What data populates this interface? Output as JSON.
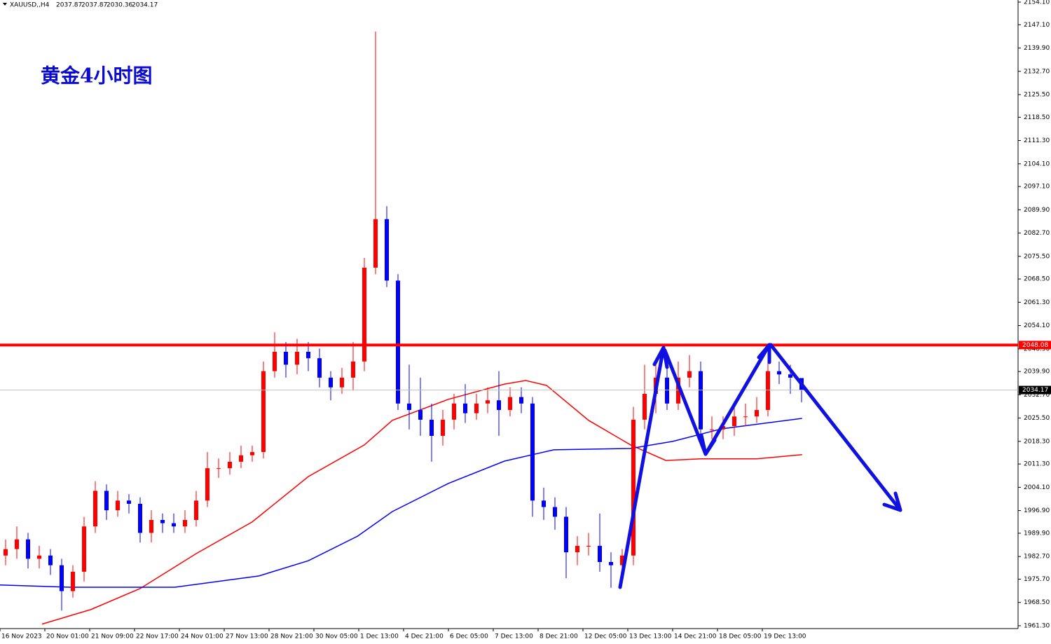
{
  "chart_data": {
    "type": "candlestick",
    "title": "黄金4小时图",
    "header": {
      "symbol": "XAUUSD,,H4",
      "ohlc": [
        2037.87,
        2037.87,
        2030.36,
        2034.17
      ]
    },
    "up_color": "#ff0000",
    "down_color": "#0000ff",
    "open": [
      1983,
      1985,
      1988,
      1982,
      1983,
      1980,
      1972,
      1978,
      1992,
      2003,
      1997,
      2000,
      1999,
      1990,
      1994,
      1993,
      1992,
      1994,
      2000,
      2010,
      2010,
      2012,
      2014,
      2015,
      2040,
      2046,
      2042,
      2046,
      2044,
      2038,
      2035,
      2038,
      2043,
      2072,
      2087,
      2068,
      2030,
      2028,
      2025,
      2020,
      2025,
      2030,
      2027,
      2030,
      2031,
      2028,
      2032,
      2030,
      2000,
      1998,
      1995,
      1984,
      1986,
      1986,
      1981,
      1980,
      1983,
      2025,
      2033,
      2038,
      2030,
      2038,
      2040,
      2022,
      2022,
      2023,
      2026,
      2026,
      2028,
      2040,
      2039,
      2037.87
    ],
    "high": [
      1988,
      1992,
      1990,
      1986,
      1985,
      1982,
      1980,
      1995,
      2006,
      2005,
      2003,
      2002,
      2001,
      1997,
      1996,
      1996,
      1997,
      2003,
      2015,
      2013,
      2015,
      2017,
      2017,
      2043,
      2052,
      2049,
      2050,
      2049,
      2047,
      2040,
      2041,
      2049,
      2075,
      2145,
      2091,
      2070,
      2042,
      2038,
      2030,
      2028,
      2033,
      2036,
      2033,
      2035,
      2040,
      2035,
      2035,
      2032,
      2004,
      2001,
      1998,
      1989,
      1990,
      1996,
      1984,
      1985,
      2029,
      2042,
      2044,
      2041,
      2043,
      2045,
      2043,
      2026,
      2026,
      2030,
      2030,
      2032,
      2044,
      2043,
      2042,
      2037.87
    ],
    "low": [
      1980,
      1982,
      1979,
      1979,
      1977,
      1966,
      1970,
      1975,
      1990,
      1994,
      1995,
      1996,
      1987,
      1987,
      1990,
      1990,
      1990,
      1992,
      1998,
      2007,
      2008,
      2010,
      2012,
      2013,
      2038,
      2038,
      2039,
      2040,
      2035,
      2031,
      2033,
      2034,
      2040,
      2070,
      2066,
      2028,
      2022,
      2020,
      2012,
      2017,
      2022,
      2024,
      2025,
      2027,
      2020,
      2026,
      2027,
      1995,
      1994,
      1991,
      1976,
      1980,
      1983,
      1978,
      1973,
      1978,
      1980,
      2022,
      2027,
      2028,
      2028,
      2035,
      2018,
      2019,
      2019,
      2020,
      2023,
      2024,
      2026,
      2036,
      2033,
      2030.36
    ],
    "close": [
      1985,
      1988,
      1982,
      1983,
      1980,
      1972,
      1978,
      1992,
      2003,
      1997,
      2000,
      1999,
      1990,
      1994,
      1993,
      1992,
      1994,
      2000,
      2010,
      2010,
      2012,
      2014,
      2015,
      2040,
      2046,
      2042,
      2046,
      2044,
      2038,
      2035,
      2038,
      2043,
      2072,
      2087,
      2068,
      2030,
      2028,
      2025,
      2020,
      2025,
      2030,
      2027,
      2030,
      2031,
      2028,
      2032,
      2030,
      2000,
      1998,
      1995,
      1984,
      1986,
      1986,
      1981,
      1980,
      1983,
      2025,
      2033,
      2038,
      2030,
      2038,
      2040,
      2022,
      2022,
      2023,
      2026,
      2026,
      2028,
      2040,
      2039,
      2038,
      2034.17
    ],
    "ma": [
      {
        "color": "#ff0000",
        "x": [
          3.25,
          7.6,
          12,
          17,
          22,
          27,
          32,
          34.5,
          39.5,
          44.5,
          46.4,
          48.25,
          52,
          55.75,
          58.9,
          62,
          67,
          71.05
        ],
        "values": [
          1961.8,
          1966.3,
          1972.8,
          1983.6,
          1993.4,
          2007.4,
          2017.2,
          2024.8,
          2031.3,
          2036,
          2037.1,
          2035.6,
          2024.8,
          2017.2,
          2012.4,
          2012.9,
          2012.9,
          2014.2
        ]
      },
      {
        "color": "#0000ff",
        "x": [
          -0.5,
          5.75,
          15.1,
          22.6,
          27,
          31.4,
          34.5,
          39.5,
          44.5,
          48.9,
          55.75,
          59.5,
          63.9,
          71.05
        ],
        "values": [
          1973.9,
          1973.2,
          1973.2,
          1976.7,
          1981.4,
          1989,
          1996.6,
          2005.3,
          2012.2,
          2015.7,
          2016.1,
          2018.3,
          2022.2,
          2025.4
        ]
      }
    ],
    "levels": [
      {
        "value": 2048.08,
        "color": "#ff0000"
      },
      {
        "value": 2034.17,
        "color": "#c0c0c0"
      }
    ],
    "ylim": [
      1960.42,
      2154.75
    ],
    "yticks": [
      {
        "value": 1961.3,
        "label": "1961.30"
      },
      {
        "value": 1968.5,
        "label": "1968.50"
      },
      {
        "value": 1975.7,
        "label": "1975.70"
      },
      {
        "value": 1982.7,
        "label": "1982.70"
      },
      {
        "value": 1989.9,
        "label": "1989.90"
      },
      {
        "value": 1996.9,
        "label": "1996.90"
      },
      {
        "value": 2004.1,
        "label": "2004.10"
      },
      {
        "value": 2011.3,
        "label": "2011.30"
      },
      {
        "value": 2018.3,
        "label": "2018.30"
      },
      {
        "value": 2025.5,
        "label": "2025.50"
      },
      {
        "value": 2032.7,
        "label": "2032.70"
      },
      {
        "value": 2039.9,
        "label": "2039.90"
      },
      {
        "value": 2046.9,
        "label": "2046.90"
      },
      {
        "value": 2054.1,
        "label": "2054.10"
      },
      {
        "value": 2061.3,
        "label": "2061.30"
      },
      {
        "value": 2068.5,
        "label": "2068.50"
      },
      {
        "value": 2075.5,
        "label": "2075.50"
      },
      {
        "value": 2082.7,
        "label": "2082.70"
      },
      {
        "value": 2089.9,
        "label": "2089.90"
      },
      {
        "value": 2097.1,
        "label": "2097.10"
      },
      {
        "value": 2104.1,
        "label": "2104.10"
      },
      {
        "value": 2111.3,
        "label": "2111.30"
      },
      {
        "value": 2118.5,
        "label": "2118.50"
      },
      {
        "value": 2125.5,
        "label": "2125.50"
      },
      {
        "value": 2132.7,
        "label": "2132.70"
      },
      {
        "value": 2139.9,
        "label": "2139.90"
      },
      {
        "value": 2147.1,
        "label": "2147.10"
      },
      {
        "value": 2154.1,
        "label": "2154.10"
      }
    ],
    "xlabels": [
      "16 Nov 2023",
      "20 Nov 01:00",
      "21 Nov 09:00",
      "22 Nov 17:00",
      "24 Nov 01:00",
      "27 Nov 13:00",
      "28 Nov 21:00",
      "30 Nov 05:00",
      "1 Dec 13:00",
      "4 Dec 21:00",
      "6 Dec 05:00",
      "7 Dec 13:00",
      "8 Dec 21:00",
      "12 Dec 05:00",
      "13 Dec 13:00",
      "14 Dec 21:00",
      "18 Dec 05:00",
      "19 Dec 13:00"
    ]
  }
}
